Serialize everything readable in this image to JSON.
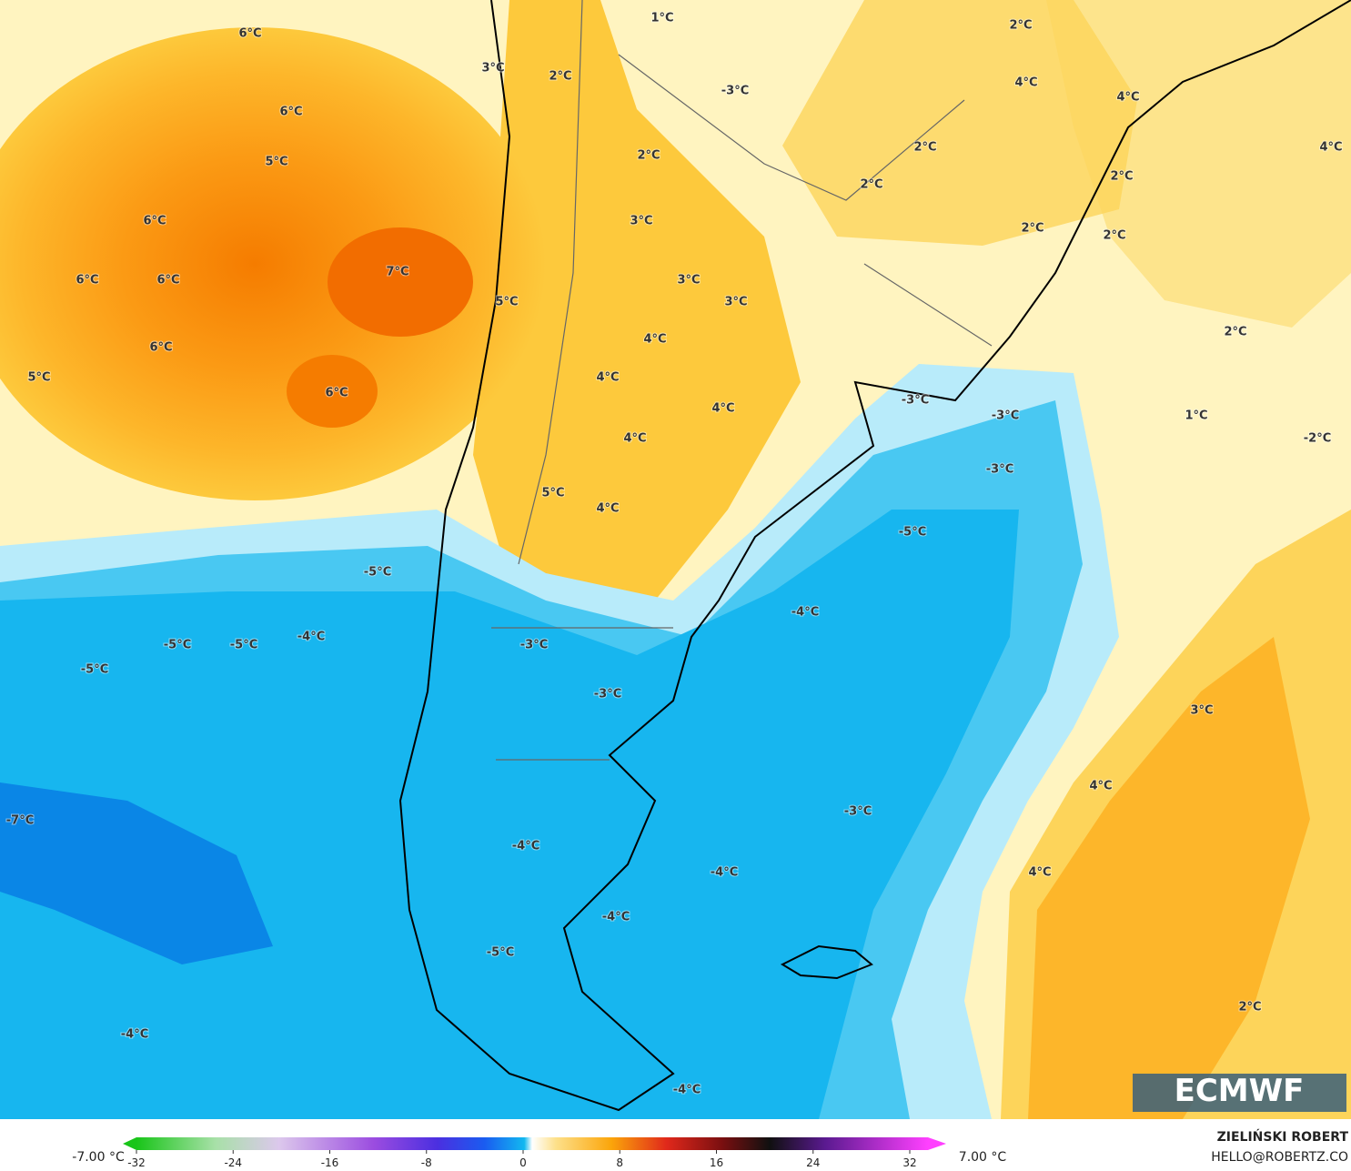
{
  "map": {
    "labels": [
      "6°C",
      "3°C",
      "2°C",
      "1°C",
      "-3°C",
      "2°C",
      "4°C",
      "4°C",
      "4°C",
      "6°C",
      "5°C",
      "2°C",
      "2°C",
      "2°C",
      "2°C",
      "6°C",
      "3°C",
      "2°C",
      "2°C",
      "6°C",
      "6°C",
      "7°C",
      "3°C",
      "3°C",
      "5°C",
      "2°C",
      "4°C",
      "6°C",
      "4°C",
      "5°C",
      "6°C",
      "4°C",
      "-3°C",
      "-3°C",
      "1°C",
      "-2°C",
      "4°C",
      "-3°C",
      "5°C",
      "4°C",
      "-5°C",
      "-5°C",
      "-4°C",
      "-4°C",
      "-5°C",
      "-5°C",
      "-3°C",
      "-5°C",
      "-3°C",
      "3°C",
      "4°C",
      "-3°C",
      "-7°C",
      "-4°C",
      "-4°C",
      "4°C",
      "-4°C",
      "-5°C",
      "2°C",
      "-4°C",
      "-4°C"
    ],
    "logo": "ECMWF"
  },
  "colorbar": {
    "min_label": "-7.00 °C",
    "max_label": "7.00 °C",
    "ticks": [
      -32,
      -24,
      -16,
      -8,
      0,
      8,
      16,
      24,
      32
    ]
  },
  "credit": {
    "author": "ZIELIŃSKI ROBERT",
    "contact": "HELLO@ROBERTZ.CO"
  }
}
